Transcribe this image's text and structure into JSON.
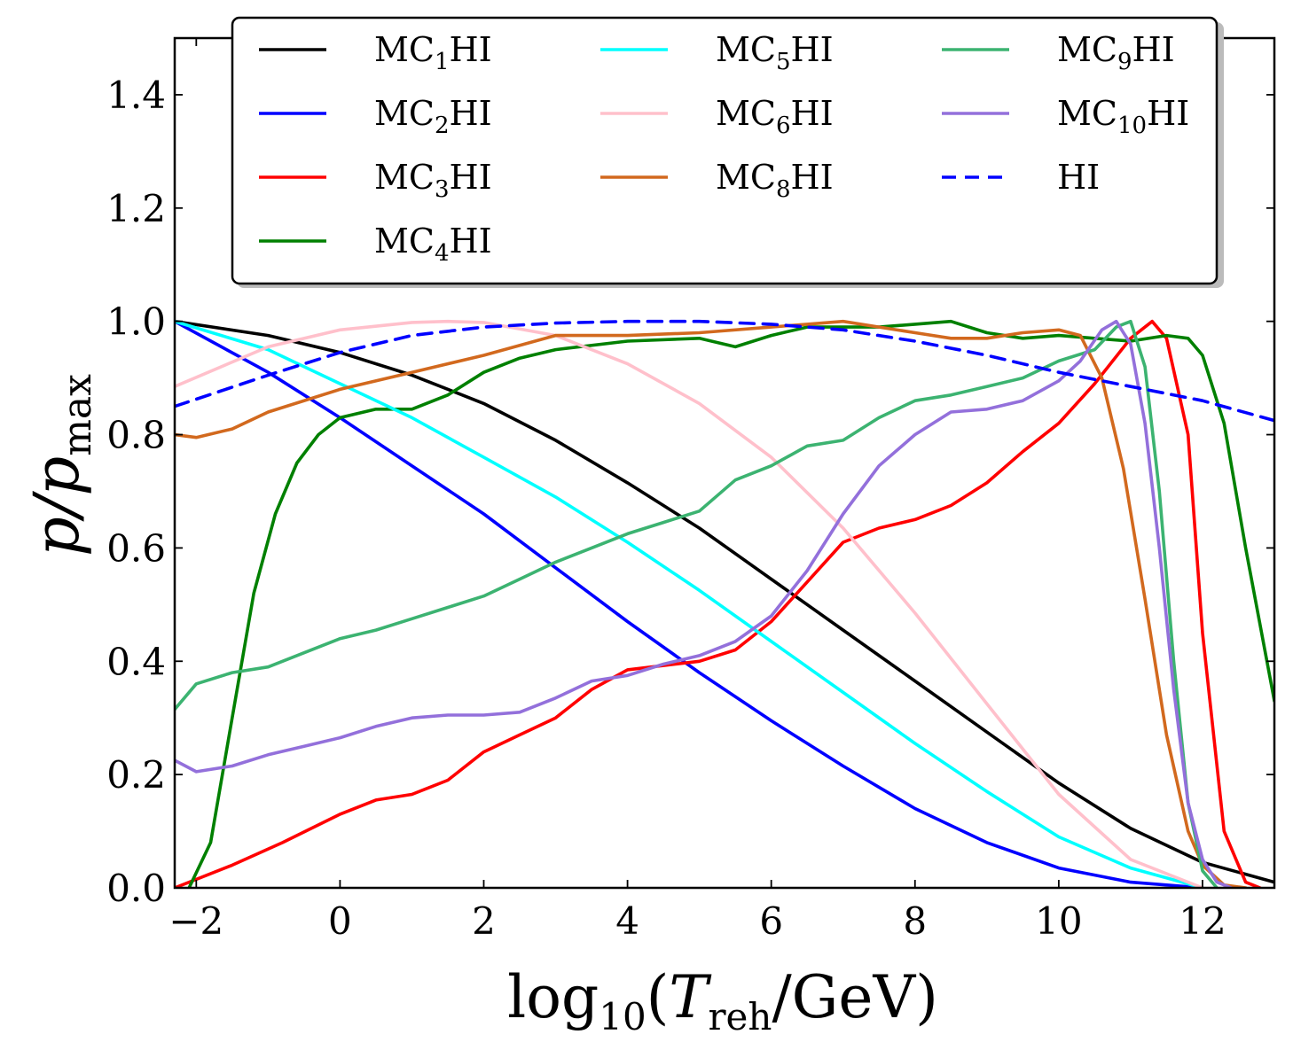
{
  "chart_data": {
    "type": "line",
    "title": "",
    "xlabel": "log10(T_reh/GeV)",
    "xlabel_parts": {
      "prefix": "log",
      "sub": "10",
      "open": "(",
      "var": "T",
      "var_sub": "reh",
      "rest": "/GeV)"
    },
    "ylabel": "p/p_max",
    "ylabel_parts": {
      "var": "p/p",
      "sub": "max"
    },
    "xlim": [
      -2.3,
      13
    ],
    "ylim": [
      0,
      1.5
    ],
    "xticks": [
      -2,
      0,
      2,
      4,
      6,
      8,
      10,
      12
    ],
    "xtick_labels": [
      "−2",
      "0",
      "2",
      "4",
      "6",
      "8",
      "10",
      "12"
    ],
    "yticks": [
      0.0,
      0.2,
      0.4,
      0.6,
      0.8,
      1.0,
      1.2,
      1.4
    ],
    "ytick_labels": [
      "0.0",
      "0.2",
      "0.4",
      "0.6",
      "0.8",
      "1.0",
      "1.2",
      "1.4"
    ],
    "grid": false,
    "legend_position": "top",
    "series": [
      {
        "name": "MC1HI",
        "label_main": "MC",
        "label_sub": "1",
        "label_tail": "HI",
        "color": "#000000",
        "dash": "solid",
        "x": [
          -2.3,
          -1,
          0,
          1,
          2,
          3,
          4,
          5,
          6,
          7,
          8,
          9,
          10,
          11,
          12,
          13
        ],
        "y": [
          1.0,
          0.975,
          0.945,
          0.905,
          0.855,
          0.79,
          0.715,
          0.635,
          0.545,
          0.455,
          0.365,
          0.275,
          0.185,
          0.105,
          0.045,
          0.01
        ]
      },
      {
        "name": "MC2HI",
        "label_main": "MC",
        "label_sub": "2",
        "label_tail": "HI",
        "color": "#0000ff",
        "dash": "solid",
        "x": [
          -2.3,
          -1,
          0,
          1,
          2,
          3,
          4,
          5,
          6,
          7,
          8,
          9,
          10,
          11,
          12
        ],
        "y": [
          1.0,
          0.91,
          0.83,
          0.745,
          0.66,
          0.565,
          0.47,
          0.38,
          0.295,
          0.215,
          0.14,
          0.08,
          0.035,
          0.01,
          0.0
        ]
      },
      {
        "name": "MC3HI",
        "label_main": "MC",
        "label_sub": "3",
        "label_tail": "HI",
        "color": "#ff0000",
        "dash": "solid",
        "x": [
          -2.3,
          -1.5,
          -0.8,
          0,
          0.5,
          1,
          1.5,
          2,
          2.5,
          3,
          3.5,
          4,
          5,
          5.5,
          6,
          6.5,
          7,
          7.5,
          8,
          8.5,
          9,
          9.5,
          10,
          10.5,
          11,
          11.3,
          11.5,
          11.8,
          12,
          12.3,
          12.6,
          12.8
        ],
        "y": [
          0.0,
          0.04,
          0.08,
          0.13,
          0.155,
          0.165,
          0.19,
          0.24,
          0.27,
          0.3,
          0.35,
          0.385,
          0.4,
          0.42,
          0.47,
          0.54,
          0.61,
          0.635,
          0.65,
          0.675,
          0.715,
          0.77,
          0.82,
          0.89,
          0.97,
          1.0,
          0.97,
          0.8,
          0.45,
          0.1,
          0.01,
          0.0
        ]
      },
      {
        "name": "MC4HI",
        "label_main": "MC",
        "label_sub": "4",
        "label_tail": "HI",
        "color": "#008000",
        "dash": "solid",
        "x": [
          -2.1,
          -1.8,
          -1.5,
          -1.2,
          -0.9,
          -0.6,
          -0.3,
          0,
          0.5,
          1,
          1.5,
          2,
          2.5,
          3,
          4,
          5,
          5.5,
          6,
          6.5,
          7,
          7.5,
          8,
          8.5,
          9,
          9.5,
          10,
          10.5,
          11,
          11.5,
          11.8,
          12,
          12.3,
          12.6,
          13
        ],
        "y": [
          0.0,
          0.08,
          0.3,
          0.52,
          0.66,
          0.75,
          0.8,
          0.83,
          0.845,
          0.845,
          0.87,
          0.91,
          0.935,
          0.95,
          0.965,
          0.97,
          0.955,
          0.975,
          0.99,
          0.99,
          0.99,
          0.995,
          1.0,
          0.98,
          0.97,
          0.975,
          0.97,
          0.965,
          0.975,
          0.97,
          0.94,
          0.82,
          0.6,
          0.33
        ]
      },
      {
        "name": "MC5HI",
        "label_main": "MC",
        "label_sub": "5",
        "label_tail": "HI",
        "color": "#00ffff",
        "dash": "solid",
        "x": [
          -2.3,
          -1,
          0,
          1,
          2,
          3,
          4,
          5,
          6,
          7,
          8,
          9,
          10,
          11,
          12
        ],
        "y": [
          1.0,
          0.95,
          0.89,
          0.83,
          0.76,
          0.69,
          0.61,
          0.525,
          0.435,
          0.345,
          0.255,
          0.17,
          0.09,
          0.035,
          0.0
        ]
      },
      {
        "name": "MC6HI",
        "label_main": "MC",
        "label_sub": "6",
        "label_tail": "HI",
        "color": "#ffc0cb",
        "dash": "solid",
        "x": [
          -2.3,
          -1,
          0,
          1,
          1.5,
          2,
          3,
          4,
          5,
          6,
          7,
          8,
          9,
          10,
          11,
          12
        ],
        "y": [
          0.885,
          0.955,
          0.985,
          0.998,
          1.0,
          0.998,
          0.975,
          0.925,
          0.855,
          0.76,
          0.635,
          0.485,
          0.325,
          0.165,
          0.05,
          0.0
        ]
      },
      {
        "name": "MC8HI",
        "label_main": "MC",
        "label_sub": "8",
        "label_tail": "HI",
        "color": "#d2691e",
        "dash": "solid",
        "x": [
          -2.3,
          -2,
          -1.5,
          -1,
          0,
          1,
          2,
          3,
          4,
          5,
          6,
          6.5,
          7,
          7.5,
          8,
          8.5,
          9,
          9.5,
          10,
          10.3,
          10.6,
          10.9,
          11.2,
          11.5,
          11.8,
          12,
          12.3,
          12.6
        ],
        "y": [
          0.8,
          0.795,
          0.81,
          0.84,
          0.88,
          0.91,
          0.94,
          0.975,
          0.975,
          0.98,
          0.99,
          0.995,
          1.0,
          0.99,
          0.98,
          0.97,
          0.97,
          0.98,
          0.985,
          0.975,
          0.9,
          0.74,
          0.51,
          0.27,
          0.1,
          0.04,
          0.005,
          0.0
        ]
      },
      {
        "name": "MC9HI",
        "label_main": "MC",
        "label_sub": "9",
        "label_tail": "HI",
        "color": "#3cb371",
        "dash": "solid",
        "x": [
          -2.3,
          -2,
          -1.5,
          -1,
          -0.5,
          0,
          0.5,
          1,
          1.5,
          2,
          2.5,
          3,
          3.5,
          4,
          4.5,
          5,
          5.5,
          6,
          6.5,
          7,
          7.5,
          8,
          8.5,
          9,
          9.5,
          10,
          10.5,
          10.8,
          11,
          11.2,
          11.4,
          11.6,
          11.8,
          12,
          12.2
        ],
        "y": [
          0.315,
          0.36,
          0.38,
          0.39,
          0.415,
          0.44,
          0.455,
          0.475,
          0.495,
          0.515,
          0.545,
          0.575,
          0.6,
          0.625,
          0.645,
          0.665,
          0.72,
          0.745,
          0.78,
          0.79,
          0.83,
          0.86,
          0.87,
          0.885,
          0.9,
          0.93,
          0.95,
          0.99,
          1.0,
          0.92,
          0.7,
          0.4,
          0.15,
          0.03,
          0.0
        ]
      },
      {
        "name": "MC10HI",
        "label_main": "MC",
        "label_sub": "10",
        "label_tail": "HI",
        "color": "#9370db",
        "dash": "solid",
        "x": [
          -2.3,
          -2,
          -1.5,
          -1,
          -0.5,
          0,
          0.5,
          1,
          1.5,
          2,
          2.5,
          3,
          3.5,
          4,
          4.5,
          5,
          5.5,
          6,
          6.5,
          7,
          7.5,
          8,
          8.5,
          9,
          9.5,
          10,
          10.3,
          10.6,
          10.8,
          11,
          11.2,
          11.4,
          11.6,
          11.8,
          12,
          12.2,
          12.4
        ],
        "y": [
          0.225,
          0.205,
          0.215,
          0.235,
          0.25,
          0.265,
          0.285,
          0.3,
          0.305,
          0.305,
          0.31,
          0.335,
          0.365,
          0.375,
          0.395,
          0.41,
          0.435,
          0.48,
          0.56,
          0.66,
          0.745,
          0.8,
          0.84,
          0.845,
          0.86,
          0.895,
          0.93,
          0.985,
          1.0,
          0.96,
          0.82,
          0.6,
          0.35,
          0.15,
          0.05,
          0.01,
          0.0
        ]
      },
      {
        "name": "HI",
        "label_main": "HI",
        "label_sub": "",
        "label_tail": "",
        "color": "#0000ff",
        "dash": "dashed",
        "x": [
          -2.3,
          -1,
          0,
          1,
          2,
          3,
          4,
          4.5,
          5,
          6,
          7,
          8,
          9,
          10,
          11,
          12,
          13
        ],
        "y": [
          0.85,
          0.905,
          0.945,
          0.975,
          0.99,
          0.997,
          1.0,
          1.0,
          1.0,
          0.995,
          0.985,
          0.965,
          0.94,
          0.91,
          0.885,
          0.86,
          0.825
        ]
      }
    ]
  }
}
